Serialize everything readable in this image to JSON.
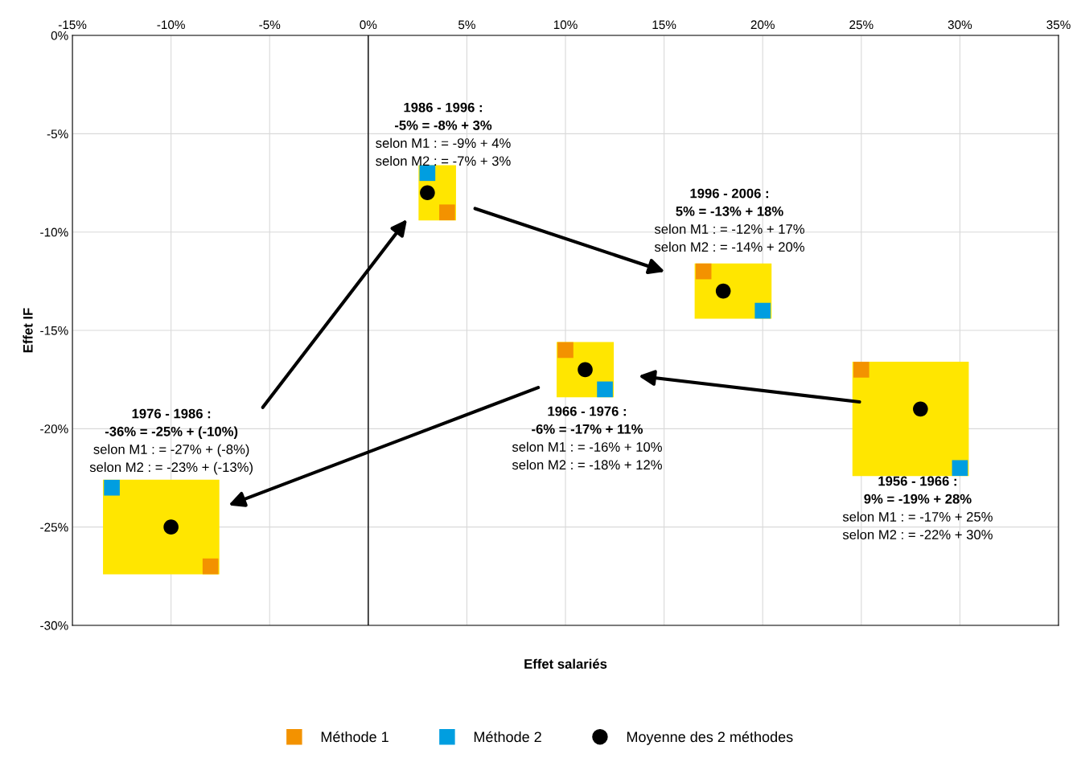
{
  "chart_data": {
    "type": "scatter",
    "xlabel": "Effet salariés",
    "ylabel": "Effet IF",
    "xlim": [
      -15,
      35
    ],
    "ylim": [
      -30,
      0
    ],
    "xticks": [
      {
        "value": -15,
        "label": "-15%"
      },
      {
        "value": -10,
        "label": "-10%"
      },
      {
        "value": -5,
        "label": "-5%"
      },
      {
        "value": 0,
        "label": "0%"
      },
      {
        "value": 5,
        "label": "5%"
      },
      {
        "value": 10,
        "label": "10%"
      },
      {
        "value": 15,
        "label": "15%"
      },
      {
        "value": 20,
        "label": "20%"
      },
      {
        "value": 25,
        "label": "25%"
      },
      {
        "value": 30,
        "label": "30%"
      },
      {
        "value": 35,
        "label": "35%"
      }
    ],
    "yticks": [
      {
        "value": 0,
        "label": "0%"
      },
      {
        "value": -5,
        "label": "-5%"
      },
      {
        "value": -10,
        "label": "-10%"
      },
      {
        "value": -15,
        "label": "-15%"
      },
      {
        "value": -20,
        "label": "-20%"
      },
      {
        "value": -25,
        "label": "-25%"
      },
      {
        "value": -30,
        "label": "-30%"
      }
    ],
    "grid": true,
    "legend": "bottom",
    "ref_lines": [
      {
        "axis": "x",
        "value": 0,
        "color": "#000000"
      }
    ],
    "series": [
      {
        "name": "Méthode 1",
        "color": "#f39200",
        "marker": "square",
        "x": [
          25,
          10,
          -8,
          4,
          17
        ],
        "values": [
          -17,
          -16,
          -27,
          -9,
          -12
        ]
      },
      {
        "name": "Méthode 2",
        "color": "#009ee0",
        "marker": "square",
        "x": [
          30,
          12,
          -13,
          3,
          20
        ],
        "values": [
          -22,
          -18,
          -23,
          -7,
          -14
        ]
      },
      {
        "name": "Moyenne des 2 méthodes",
        "color": "#000000",
        "marker": "circle",
        "x": [
          28,
          11,
          -10,
          3,
          18
        ],
        "values": [
          -19,
          -17,
          -25,
          -8,
          -13
        ]
      }
    ],
    "annotations": [
      "1956 - 1966 :\n9% = -19% + 28%\nselon M1 : = -17% + 25%\nselon M2 : = -22% + 30%",
      "1966 - 1976 :\n-6% = -17% + 11%\nselon M1 : = -16% + 10%\nselon M2 : = -18% + 12%",
      "1976 - 1986 :\n-36% = -25% + (-10%)\nselon M1 : = -27% + (-8%)\nselon M2 : = -23% + (-13%)",
      "1986 - 1996 :\n-5% = -8% + 3%\nselon M1 : = -9% + 4%\nselon M2 : = -7% + 3%",
      "1996 - 2006 :\n5% = -13% + 18%\nselon M1 : = -12% + 17%\nselon M2 : = -14% + 20%"
    ]
  }
}
